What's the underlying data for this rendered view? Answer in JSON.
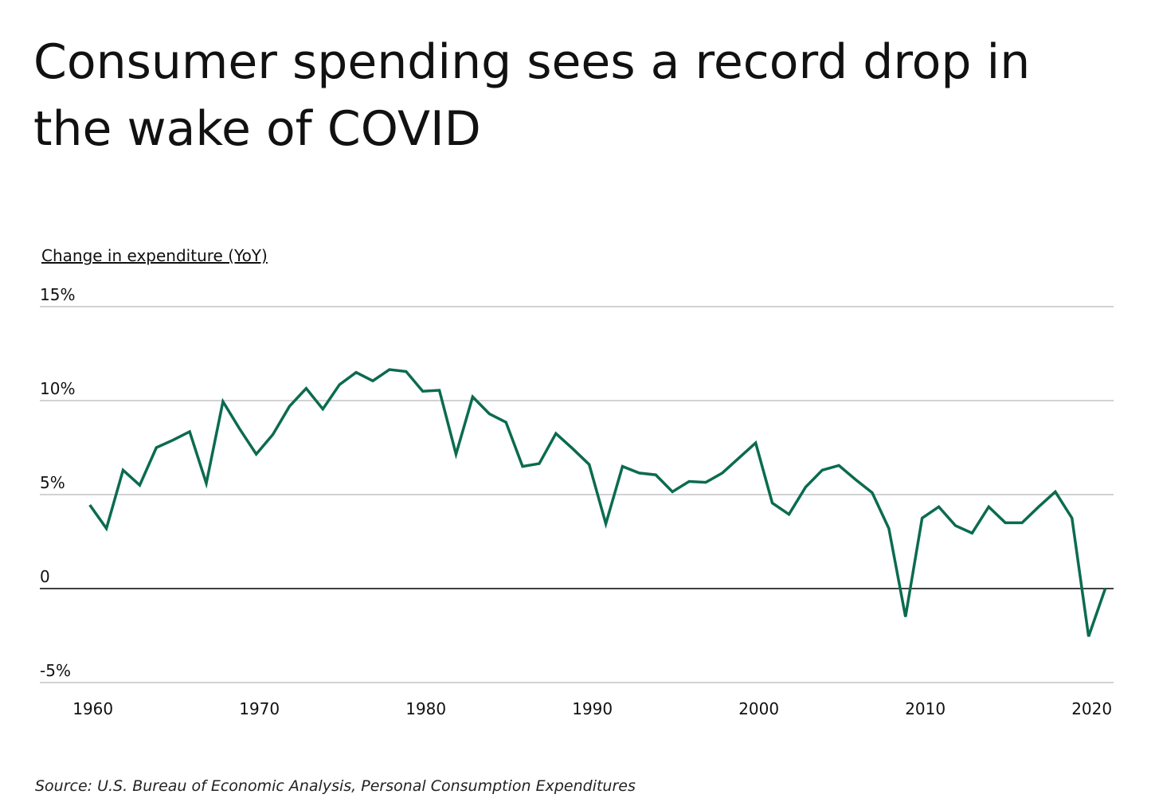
{
  "chart_data": {
    "type": "line",
    "title": "Consumer spending sees a record drop in the wake of COVID",
    "y_label": "Change in expenditure (YoY)",
    "source": "Source:  U.S. Bureau of Economic Analysis, Personal Consumption Expenditures",
    "x": [
      1960,
      1961,
      1962,
      1963,
      1964,
      1965,
      1966,
      1967,
      1968,
      1969,
      1970,
      1971,
      1972,
      1973,
      1974,
      1975,
      1976,
      1977,
      1978,
      1979,
      1980,
      1981,
      1982,
      1983,
      1984,
      1985,
      1986,
      1987,
      1988,
      1989,
      1990,
      1991,
      1992,
      1993,
      1994,
      1995,
      1996,
      1997,
      1998,
      1999,
      2000,
      2001,
      2002,
      2003,
      2004,
      2005,
      2006,
      2007,
      2008,
      2009,
      2010,
      2011,
      2012,
      2013,
      2014,
      2015,
      2016,
      2017,
      2018,
      2019,
      2020,
      2021
    ],
    "series": [
      {
        "name": "Change in expenditure",
        "color": "#0b6b4f",
        "values": [
          4.45,
          3.2,
          6.3,
          5.5,
          7.5,
          7.9,
          8.35,
          5.6,
          9.95,
          8.5,
          7.15,
          8.2,
          9.7,
          10.65,
          9.55,
          10.85,
          11.5,
          11.05,
          11.65,
          11.55,
          10.5,
          10.55,
          7.15,
          10.2,
          9.3,
          8.85,
          6.5,
          6.65,
          8.25,
          7.45,
          6.6,
          3.45,
          6.5,
          6.15,
          6.05,
          5.15,
          5.7,
          5.65,
          6.15,
          6.95,
          7.75,
          4.55,
          3.95,
          5.4,
          6.3,
          6.55,
          5.8,
          5.1,
          3.2,
          -1.5,
          3.75,
          4.35,
          3.35,
          2.95,
          4.35,
          3.5,
          3.5,
          4.35,
          5.15,
          3.75,
          -2.55,
          0
        ]
      }
    ],
    "xlim": [
      1957,
      2021.5
    ],
    "xticks": [
      1960,
      1970,
      1980,
      1990,
      2000,
      2010,
      2020
    ],
    "ylim": [
      -5,
      15
    ],
    "yticks": [
      {
        "value": 15,
        "label": "15%"
      },
      {
        "value": 10,
        "label": "10%"
      },
      {
        "value": 5,
        "label": "5%"
      },
      0,
      {
        "value": -5,
        "label": "-5%"
      }
    ],
    "grid": true
  }
}
